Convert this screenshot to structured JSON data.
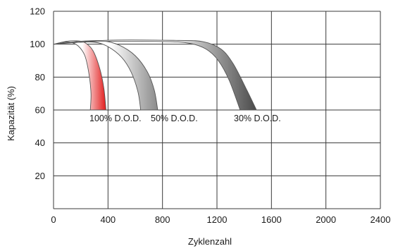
{
  "chart_data": {
    "type": "area",
    "title": "",
    "xlabel": "Zyklenzahl",
    "ylabel": "Kapazität (%)",
    "xlim": [
      0,
      2400
    ],
    "ylim": [
      0,
      120
    ],
    "x_ticks": [
      0,
      400,
      800,
      1200,
      1600,
      2000,
      2400
    ],
    "y_ticks": [
      20,
      40,
      60,
      80,
      100,
      120
    ],
    "grid": true,
    "legend": "none",
    "series": [
      {
        "label": "100% D.O.D.",
        "color_start": "#ffffff",
        "color_end": "#e21c1c",
        "upper": [
          [
            0,
            100
          ],
          [
            100,
            101.8
          ],
          [
            170,
            102
          ],
          [
            230,
            101
          ],
          [
            290,
            96
          ],
          [
            340,
            85
          ],
          [
            370,
            73
          ],
          [
            385,
            60
          ]
        ],
        "lower": [
          [
            0,
            100
          ],
          [
            60,
            101
          ],
          [
            120,
            101.3
          ],
          [
            180,
            99
          ],
          [
            230,
            93
          ],
          [
            260,
            82
          ],
          [
            275,
            70
          ],
          [
            270,
            60
          ]
        ]
      },
      {
        "label": "50% D.O.D.",
        "color_start": "#ffffff",
        "color_end": "#8a8a8a",
        "upper": [
          [
            0,
            100
          ],
          [
            200,
            101.8
          ],
          [
            360,
            102
          ],
          [
            480,
            99.5
          ],
          [
            600,
            93
          ],
          [
            690,
            83
          ],
          [
            740,
            72
          ],
          [
            765,
            60
          ]
        ],
        "lower": [
          [
            0,
            100
          ],
          [
            150,
            101
          ],
          [
            300,
            101.2
          ],
          [
            400,
            98.5
          ],
          [
            500,
            92
          ],
          [
            570,
            83
          ],
          [
            620,
            71
          ],
          [
            640,
            60
          ]
        ]
      },
      {
        "label": "30% D.O.D.",
        "color_start": "#ffffff",
        "color_end": "#4a4a4a",
        "upper": [
          [
            0,
            100
          ],
          [
            400,
            102.4
          ],
          [
            900,
            102.3
          ],
          [
            1100,
            101.5
          ],
          [
            1230,
            97
          ],
          [
            1320,
            88
          ],
          [
            1420,
            72
          ],
          [
            1490,
            60
          ]
        ],
        "lower": [
          [
            0,
            100
          ],
          [
            300,
            101.6
          ],
          [
            800,
            101.6
          ],
          [
            1000,
            100.5
          ],
          [
            1120,
            97
          ],
          [
            1210,
            90
          ],
          [
            1290,
            78
          ],
          [
            1370,
            60
          ]
        ]
      }
    ]
  }
}
